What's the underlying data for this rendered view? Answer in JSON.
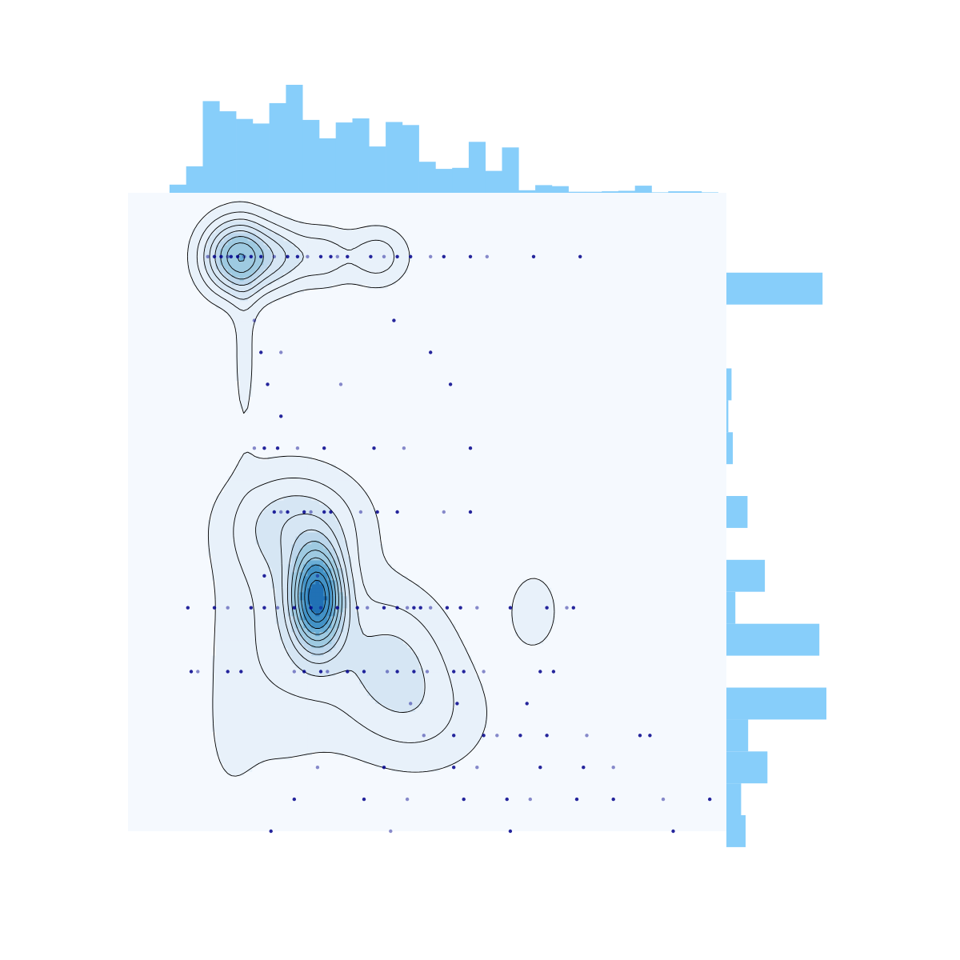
{
  "chart_data": {
    "type": "scatter",
    "title": "",
    "xlabel": "",
    "ylabel": "",
    "grid": false,
    "legend": "none",
    "x_range": [
      -1.5,
      16.5
    ],
    "y_range": [
      -0.25,
      9.75
    ],
    "colors": {
      "panel_bg": "#f5f9fe",
      "marginal_bar": "#87cefa",
      "point": "#00008b",
      "contour_line": "#000000",
      "density_levels": [
        "#e8f1fa",
        "#d6e6f4",
        "#bdd7ec",
        "#9ecae1",
        "#6baed6",
        "#4292c6",
        "#2171b5"
      ]
    },
    "points": [
      {
        "x": 0.9,
        "y": 8.75
      },
      {
        "x": 1.1,
        "y": 8.75
      },
      {
        "x": 1.3,
        "y": 8.75
      },
      {
        "x": 1.5,
        "y": 8.75
      },
      {
        "x": 1.6,
        "y": 8.75
      },
      {
        "x": 1.8,
        "y": 8.75
      },
      {
        "x": 2.0,
        "y": 8.75
      },
      {
        "x": 2.2,
        "y": 8.75
      },
      {
        "x": 2.5,
        "y": 8.75
      },
      {
        "x": 2.9,
        "y": 8.75
      },
      {
        "x": 3.3,
        "y": 8.75
      },
      {
        "x": 3.6,
        "y": 8.75
      },
      {
        "x": 3.9,
        "y": 8.75
      },
      {
        "x": 4.3,
        "y": 8.75
      },
      {
        "x": 4.6,
        "y": 8.75
      },
      {
        "x": 4.8,
        "y": 8.75
      },
      {
        "x": 5.1,
        "y": 8.75
      },
      {
        "x": 5.8,
        "y": 8.75
      },
      {
        "x": 6.2,
        "y": 8.75
      },
      {
        "x": 6.6,
        "y": 8.75
      },
      {
        "x": 7.0,
        "y": 8.75
      },
      {
        "x": 7.6,
        "y": 8.75
      },
      {
        "x": 8.0,
        "y": 8.75
      },
      {
        "x": 8.8,
        "y": 8.75
      },
      {
        "x": 9.3,
        "y": 8.75
      },
      {
        "x": 10.7,
        "y": 8.75
      },
      {
        "x": 12.1,
        "y": 8.75
      },
      {
        "x": 2.3,
        "y": 7.75
      },
      {
        "x": 6.5,
        "y": 7.75
      },
      {
        "x": 2.5,
        "y": 7.25
      },
      {
        "x": 3.1,
        "y": 7.25
      },
      {
        "x": 7.6,
        "y": 7.25
      },
      {
        "x": 2.7,
        "y": 6.75
      },
      {
        "x": 4.9,
        "y": 6.75
      },
      {
        "x": 8.2,
        "y": 6.75
      },
      {
        "x": 3.1,
        "y": 6.25
      },
      {
        "x": 2.3,
        "y": 5.75
      },
      {
        "x": 2.6,
        "y": 5.75
      },
      {
        "x": 3.0,
        "y": 5.75
      },
      {
        "x": 3.6,
        "y": 5.75
      },
      {
        "x": 4.4,
        "y": 5.75
      },
      {
        "x": 5.9,
        "y": 5.75
      },
      {
        "x": 6.8,
        "y": 5.75
      },
      {
        "x": 8.8,
        "y": 5.75
      },
      {
        "x": 2.9,
        "y": 4.75
      },
      {
        "x": 3.1,
        "y": 4.75
      },
      {
        "x": 3.3,
        "y": 4.75
      },
      {
        "x": 3.8,
        "y": 4.75
      },
      {
        "x": 4.0,
        "y": 4.75
      },
      {
        "x": 4.4,
        "y": 4.75
      },
      {
        "x": 4.6,
        "y": 4.75
      },
      {
        "x": 5.5,
        "y": 4.75
      },
      {
        "x": 6.0,
        "y": 4.75
      },
      {
        "x": 6.6,
        "y": 4.75
      },
      {
        "x": 8.0,
        "y": 4.75
      },
      {
        "x": 8.8,
        "y": 4.75
      },
      {
        "x": 2.6,
        "y": 3.75
      },
      {
        "x": 4.2,
        "y": 3.75
      },
      {
        "x": 0.3,
        "y": 3.25
      },
      {
        "x": 1.1,
        "y": 3.25
      },
      {
        "x": 1.5,
        "y": 3.25
      },
      {
        "x": 2.2,
        "y": 3.25
      },
      {
        "x": 2.6,
        "y": 3.25
      },
      {
        "x": 3.0,
        "y": 3.25
      },
      {
        "x": 3.5,
        "y": 3.25
      },
      {
        "x": 4.0,
        "y": 3.25
      },
      {
        "x": 4.3,
        "y": 3.25
      },
      {
        "x": 4.8,
        "y": 3.25
      },
      {
        "x": 5.4,
        "y": 3.25
      },
      {
        "x": 5.7,
        "y": 3.25
      },
      {
        "x": 6.2,
        "y": 3.25
      },
      {
        "x": 6.6,
        "y": 3.25
      },
      {
        "x": 6.9,
        "y": 3.25
      },
      {
        "x": 7.1,
        "y": 3.25
      },
      {
        "x": 7.3,
        "y": 3.25
      },
      {
        "x": 7.6,
        "y": 3.25
      },
      {
        "x": 8.1,
        "y": 3.25
      },
      {
        "x": 8.5,
        "y": 3.25
      },
      {
        "x": 9.0,
        "y": 3.25
      },
      {
        "x": 10.0,
        "y": 3.25
      },
      {
        "x": 11.1,
        "y": 3.25
      },
      {
        "x": 11.7,
        "y": 3.25
      },
      {
        "x": 11.9,
        "y": 3.25
      },
      {
        "x": 0.4,
        "y": 2.25
      },
      {
        "x": 0.6,
        "y": 2.25
      },
      {
        "x": 1.5,
        "y": 2.25
      },
      {
        "x": 1.9,
        "y": 2.25
      },
      {
        "x": 3.5,
        "y": 2.25
      },
      {
        "x": 3.8,
        "y": 2.25
      },
      {
        "x": 4.3,
        "y": 2.25
      },
      {
        "x": 4.5,
        "y": 2.25
      },
      {
        "x": 5.1,
        "y": 2.25
      },
      {
        "x": 5.6,
        "y": 2.25
      },
      {
        "x": 6.3,
        "y": 2.25
      },
      {
        "x": 6.6,
        "y": 2.25
      },
      {
        "x": 7.1,
        "y": 2.25
      },
      {
        "x": 7.5,
        "y": 2.25
      },
      {
        "x": 8.3,
        "y": 2.25
      },
      {
        "x": 8.6,
        "y": 2.25
      },
      {
        "x": 9.2,
        "y": 2.25
      },
      {
        "x": 10.9,
        "y": 2.25
      },
      {
        "x": 11.3,
        "y": 2.25
      },
      {
        "x": 7.0,
        "y": 1.75
      },
      {
        "x": 8.4,
        "y": 1.75
      },
      {
        "x": 10.5,
        "y": 1.75
      },
      {
        "x": 7.4,
        "y": 1.25
      },
      {
        "x": 8.3,
        "y": 1.25
      },
      {
        "x": 9.2,
        "y": 1.25
      },
      {
        "x": 9.6,
        "y": 1.25
      },
      {
        "x": 10.3,
        "y": 1.25
      },
      {
        "x": 11.1,
        "y": 1.25
      },
      {
        "x": 12.3,
        "y": 1.25
      },
      {
        "x": 13.9,
        "y": 1.25
      },
      {
        "x": 14.2,
        "y": 1.25
      },
      {
        "x": 4.2,
        "y": 0.75
      },
      {
        "x": 6.2,
        "y": 0.75
      },
      {
        "x": 8.3,
        "y": 0.75
      },
      {
        "x": 9.0,
        "y": 0.75
      },
      {
        "x": 10.9,
        "y": 0.75
      },
      {
        "x": 12.2,
        "y": 0.75
      },
      {
        "x": 13.1,
        "y": 0.75
      },
      {
        "x": 3.5,
        "y": 0.25
      },
      {
        "x": 5.6,
        "y": 0.25
      },
      {
        "x": 6.9,
        "y": 0.25
      },
      {
        "x": 8.6,
        "y": 0.25
      },
      {
        "x": 9.9,
        "y": 0.25
      },
      {
        "x": 10.6,
        "y": 0.25
      },
      {
        "x": 12.0,
        "y": 0.25
      },
      {
        "x": 13.1,
        "y": 0.25
      },
      {
        "x": 14.6,
        "y": 0.25
      },
      {
        "x": 16.0,
        "y": 0.25
      },
      {
        "x": 2.8,
        "y": -0.25
      },
      {
        "x": 6.4,
        "y": -0.25
      },
      {
        "x": 10.0,
        "y": -0.25
      },
      {
        "x": 14.9,
        "y": -0.25
      }
    ],
    "density_components": [
      {
        "x": 1.8,
        "y": 8.75,
        "sx": 0.75,
        "sy": 0.42,
        "w": 3.2
      },
      {
        "x": 3.2,
        "y": 8.75,
        "sx": 0.6,
        "sy": 0.35,
        "w": 1.1
      },
      {
        "x": 4.4,
        "y": 8.75,
        "sx": 0.55,
        "sy": 0.35,
        "w": 0.9
      },
      {
        "x": 6.0,
        "y": 8.75,
        "sx": 0.7,
        "sy": 0.35,
        "w": 1.1
      },
      {
        "x": 9.8,
        "y": 8.75,
        "sx": 0.4,
        "sy": 0.3,
        "w": 0.28
      },
      {
        "x": 2.0,
        "y": 7.2,
        "sx": 0.3,
        "sy": 1.0,
        "w": 0.55
      },
      {
        "x": 4.2,
        "y": 3.4,
        "sx": 0.55,
        "sy": 0.55,
        "w": 4.2
      },
      {
        "x": 3.6,
        "y": 4.6,
        "sx": 1.5,
        "sy": 0.6,
        "w": 1.2
      },
      {
        "x": 3.0,
        "y": 2.8,
        "sx": 1.5,
        "sy": 1.5,
        "w": 0.9
      },
      {
        "x": 6.4,
        "y": 2.5,
        "sx": 1.3,
        "sy": 0.8,
        "w": 1.2
      },
      {
        "x": 7.5,
        "y": 1.5,
        "sx": 1.6,
        "sy": 0.7,
        "w": 0.7
      },
      {
        "x": 10.7,
        "y": 3.2,
        "sx": 0.55,
        "sy": 0.45,
        "w": 0.8
      },
      {
        "x": 9.0,
        "y": 6.0,
        "sx": 0.25,
        "sy": 1.2,
        "w": 0.35
      },
      {
        "x": 1.5,
        "y": 1.0,
        "sx": 0.6,
        "sy": 0.8,
        "w": 0.25
      },
      {
        "x": 14.4,
        "y": 3.2,
        "sx": 0.4,
        "sy": 0.35,
        "w": 0.22
      }
    ],
    "x_marginal_hist": {
      "bins": [
        -0.25,
        0.25,
        0.75,
        1.25,
        1.75,
        2.25,
        2.75,
        3.25,
        3.75,
        4.25,
        4.75,
        5.25,
        5.75,
        6.25,
        6.75,
        7.25,
        7.75,
        8.25,
        8.75,
        9.25,
        9.75,
        10.25,
        10.75,
        11.25,
        11.75,
        12.25,
        12.75,
        13.25,
        13.75,
        14.25,
        14.75,
        15.25,
        15.75,
        16.25
      ],
      "counts": [
        1.6,
        5.2,
        18.0,
        16.0,
        14.5,
        13.6,
        17.6,
        21.2,
        14.3,
        10.7,
        13.8,
        14.6,
        9.1,
        13.9,
        13.3,
        6.1,
        4.7,
        4.9,
        10.0,
        4.3,
        8.9,
        0.5,
        1.5,
        1.3,
        0.2,
        0.2,
        0.3,
        0.4,
        1.4,
        0.1,
        0.3,
        0.3,
        0.1
      ]
    },
    "y_marginal_hist": {
      "bins": [
        -0.5,
        0.0,
        0.5,
        1.0,
        1.5,
        2.0,
        2.5,
        3.0,
        3.5,
        4.0,
        4.5,
        5.0,
        5.5,
        6.0,
        6.5,
        7.0,
        7.5,
        8.0,
        8.5,
        9.0
      ],
      "counts": [
        3.0,
        2.3,
        6.4,
        3.4,
        15.6,
        0.0,
        14.5,
        1.4,
        6.0,
        0.0,
        3.3,
        0.0,
        1.0,
        0.3,
        0.8,
        0.0,
        0.0,
        15.0,
        0.0
      ]
    }
  }
}
